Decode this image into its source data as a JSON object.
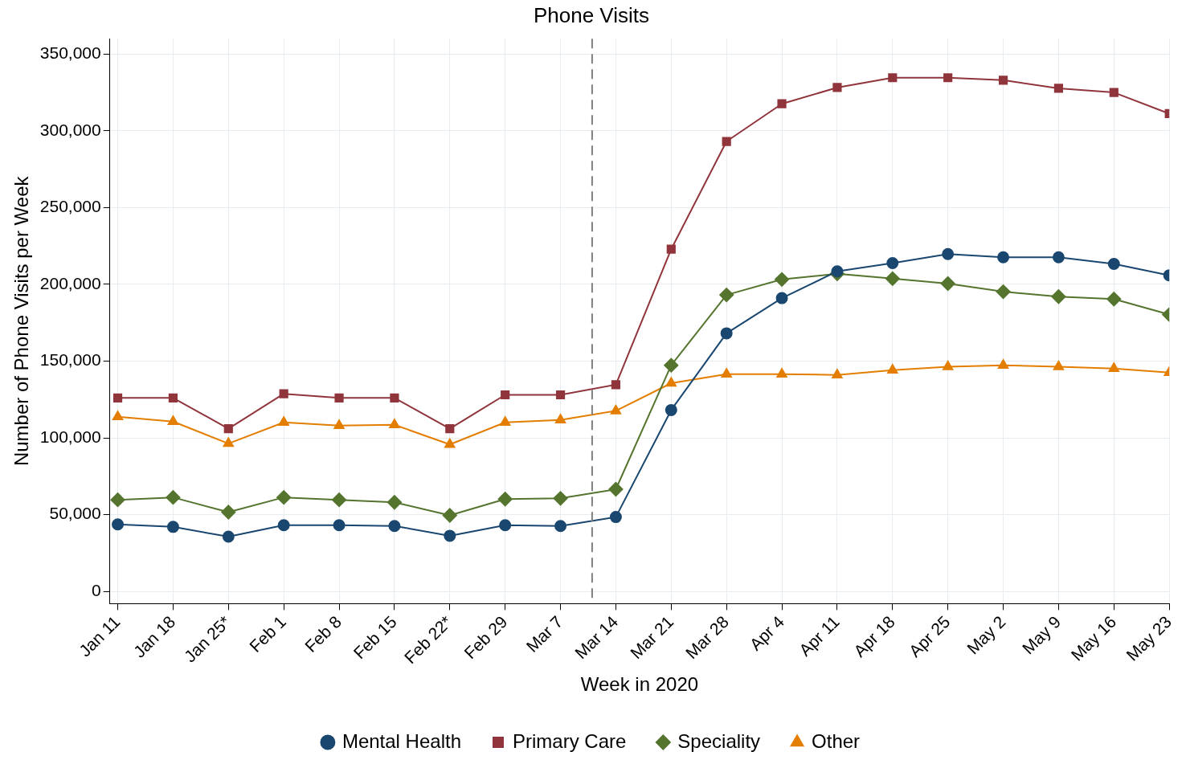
{
  "chart_data": {
    "type": "line",
    "title": "Phone Visits",
    "xlabel": "Week in 2020",
    "ylabel": "Number of Phone Visits per Week",
    "x": [
      "2020-01-11",
      "2020-01-18",
      "2020-01-25",
      "2020-02-01",
      "2020-02-08",
      "2020-02-15",
      "2020-02-22",
      "2020-02-29",
      "2020-03-07",
      "2020-03-14",
      "2020-03-21",
      "2020-03-28",
      "2020-04-04",
      "2020-04-11",
      "2020-04-18",
      "2020-04-25",
      "2020-05-02",
      "2020-05-09",
      "2020-05-16",
      "2020-05-23"
    ],
    "series": [
      {
        "name": "Mental Health",
        "color": "#1a476f",
        "marker": "circle",
        "values": [
          43600,
          42000,
          35600,
          43100,
          43100,
          42600,
          36200,
          43100,
          42600,
          48400,
          118100,
          168100,
          191000,
          208500,
          213800,
          219700,
          217600,
          217600,
          213300,
          205900
        ]
      },
      {
        "name": "Primary Care",
        "color": "#90353b",
        "marker": "square",
        "values": [
          126000,
          126000,
          106000,
          128700,
          126000,
          126000,
          106000,
          128000,
          128000,
          134600,
          222900,
          293100,
          317600,
          328200,
          334600,
          334600,
          333000,
          327700,
          325000,
          311200
        ]
      },
      {
        "name": "Speciality",
        "color": "#55752f",
        "marker": "diamond",
        "values": [
          59600,
          61200,
          51600,
          61200,
          59600,
          58000,
          49500,
          60100,
          60600,
          66500,
          147300,
          193100,
          203200,
          206900,
          203700,
          200500,
          195200,
          192000,
          190400,
          180300
        ]
      },
      {
        "name": "Other",
        "color": "#e37e00",
        "marker": "triangle",
        "values": [
          113800,
          110600,
          96300,
          110100,
          108000,
          108500,
          95700,
          110100,
          111700,
          117600,
          135600,
          141500,
          141500,
          141000,
          144100,
          146300,
          147300,
          146300,
          145200,
          142500
        ]
      }
    ],
    "xlim": [
      "2020-01-10",
      "2020-05-23"
    ],
    "xticks": [
      {
        "value": "2020-01-11",
        "label": "Jan 11"
      },
      {
        "value": "2020-01-18",
        "label": "Jan 18"
      },
      {
        "value": "2020-01-25",
        "label": "Jan 25*"
      },
      {
        "value": "2020-02-01",
        "label": "Feb 1"
      },
      {
        "value": "2020-02-08",
        "label": "Feb 8"
      },
      {
        "value": "2020-02-15",
        "label": "Feb 15"
      },
      {
        "value": "2020-02-22",
        "label": "Feb 22*"
      },
      {
        "value": "2020-02-29",
        "label": "Feb 29"
      },
      {
        "value": "2020-03-07",
        "label": "Mar 7"
      },
      {
        "value": "2020-03-14",
        "label": "Mar 14"
      },
      {
        "value": "2020-03-21",
        "label": "Mar 21"
      },
      {
        "value": "2020-03-28",
        "label": "Mar 28"
      },
      {
        "value": "2020-04-04",
        "label": "Apr 4"
      },
      {
        "value": "2020-04-11",
        "label": "Apr 11"
      },
      {
        "value": "2020-04-18",
        "label": "Apr 18"
      },
      {
        "value": "2020-04-25",
        "label": "Apr 25"
      },
      {
        "value": "2020-05-02",
        "label": "May 2"
      },
      {
        "value": "2020-05-09",
        "label": "May 9"
      },
      {
        "value": "2020-05-16",
        "label": "May 16"
      },
      {
        "value": "2020-05-23",
        "label": "May 23"
      }
    ],
    "ylim": [
      -8000,
      360000
    ],
    "yticks": [
      0,
      {
        "value": 50000,
        "label": "50,000"
      },
      {
        "value": 100000,
        "label": "100,000"
      },
      {
        "value": 150000,
        "label": "150,000"
      },
      {
        "value": 200000,
        "label": "200,000"
      },
      {
        "value": 250000,
        "label": "250,000"
      },
      {
        "value": 300000,
        "label": "300,000"
      },
      {
        "value": 350000,
        "label": "350,000"
      }
    ],
    "ref_lines": [
      {
        "axis": "x",
        "value": "2020-03-11",
        "color": "#7f7f7f",
        "line_style": "dashed"
      }
    ],
    "grid": true,
    "legend": "bottom",
    "line_style": "solid"
  }
}
